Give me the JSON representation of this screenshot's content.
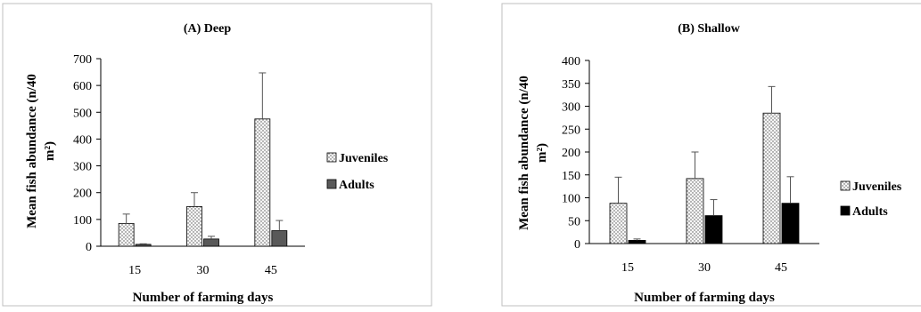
{
  "chart_data": [
    {
      "type": "bar",
      "title": "(A) Deep",
      "xlabel": "Number of farming days",
      "ylabel": "Mean fish abundance (n/40 m²)",
      "ylabel_line1": "Mean fish abundance (n/40",
      "ylabel_line2": "m²)",
      "categories": [
        "15",
        "30",
        "45"
      ],
      "ylim": [
        0,
        700
      ],
      "yticks": [
        0,
        100,
        200,
        300,
        400,
        500,
        600,
        700
      ],
      "series": [
        {
          "name": "Juveniles",
          "values": [
            85,
            148,
            475
          ],
          "error": [
            35,
            52,
            172
          ],
          "color": "#f4f4f4",
          "pattern": "dots"
        },
        {
          "name": "Adults",
          "values": [
            7,
            27,
            58
          ],
          "error": [
            2,
            10,
            38
          ],
          "color": "#595959",
          "pattern": "solid"
        }
      ],
      "legend_position": "right",
      "grid": false
    },
    {
      "type": "bar",
      "title": "(B) Shallow",
      "xlabel": "Number of farming days",
      "ylabel": "Mean fish abundance (n/40 m²)",
      "ylabel_line1": "Mean fish abundance (n/40",
      "ylabel_line2": "m²)",
      "categories": [
        "15",
        "30",
        "45"
      ],
      "ylim": [
        0,
        400
      ],
      "yticks": [
        0,
        50,
        100,
        150,
        200,
        250,
        300,
        350,
        400
      ],
      "series": [
        {
          "name": "Juveniles",
          "values": [
            88,
            142,
            285
          ],
          "error": [
            57,
            58,
            58
          ],
          "color": "#f4f4f4",
          "pattern": "dots"
        },
        {
          "name": "Adults",
          "values": [
            7,
            61,
            88
          ],
          "error": [
            3,
            35,
            58
          ],
          "color": "#000000",
          "pattern": "solid"
        }
      ],
      "legend_position": "right",
      "grid": false
    }
  ]
}
